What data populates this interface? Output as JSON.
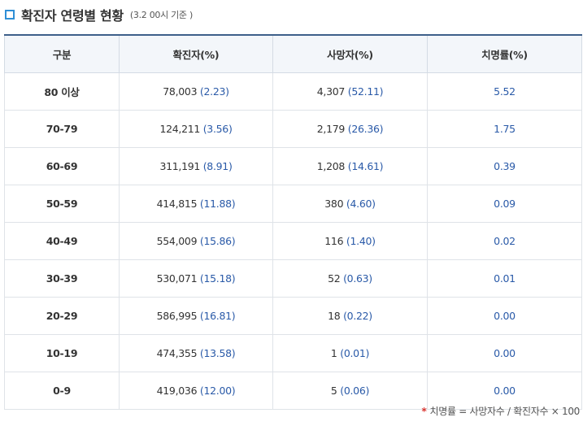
{
  "header": {
    "title": "확진자 연령별 현황",
    "subtitle": "(3.2 00시 기준 )"
  },
  "table": {
    "headers": [
      "구분",
      "확진자(%)",
      "사망자(%)",
      "치명률(%)"
    ],
    "rows": [
      {
        "label": "80 이상",
        "confirmed": "78,003",
        "confirmed_pct": "(2.23)",
        "deaths": "4,307",
        "deaths_pct": "(52.11)",
        "fatality": "5.52"
      },
      {
        "label": "70-79",
        "confirmed": "124,211",
        "confirmed_pct": "(3.56)",
        "deaths": "2,179",
        "deaths_pct": "(26.36)",
        "fatality": "1.75"
      },
      {
        "label": "60-69",
        "confirmed": "311,191",
        "confirmed_pct": "(8.91)",
        "deaths": "1,208",
        "deaths_pct": "(14.61)",
        "fatality": "0.39"
      },
      {
        "label": "50-59",
        "confirmed": "414,815",
        "confirmed_pct": "(11.88)",
        "deaths": "380",
        "deaths_pct": "(4.60)",
        "fatality": "0.09"
      },
      {
        "label": "40-49",
        "confirmed": "554,009",
        "confirmed_pct": "(15.86)",
        "deaths": "116",
        "deaths_pct": "(1.40)",
        "fatality": "0.02"
      },
      {
        "label": "30-39",
        "confirmed": "530,071",
        "confirmed_pct": "(15.18)",
        "deaths": "52",
        "deaths_pct": "(0.63)",
        "fatality": "0.01"
      },
      {
        "label": "20-29",
        "confirmed": "586,995",
        "confirmed_pct": "(16.81)",
        "deaths": "18",
        "deaths_pct": "(0.22)",
        "fatality": "0.00"
      },
      {
        "label": "10-19",
        "confirmed": "474,355",
        "confirmed_pct": "(13.58)",
        "deaths": "1",
        "deaths_pct": "(0.01)",
        "fatality": "0.00"
      },
      {
        "label": "0-9",
        "confirmed": "419,036",
        "confirmed_pct": "(12.00)",
        "deaths": "5",
        "deaths_pct": "(0.06)",
        "fatality": "0.00"
      }
    ]
  },
  "footnote": {
    "marker": "*",
    "text": "치명률 = 사망자수 / 확진자수 × 100"
  },
  "colors": {
    "accent": "#2f8fd6",
    "header_border": "#3e5f8a",
    "header_bg": "#f3f6fa",
    "percent_text": "#2a5aa8",
    "footnote_marker": "#d9332e"
  },
  "icons": {
    "title_marker": "square-outline-icon"
  }
}
